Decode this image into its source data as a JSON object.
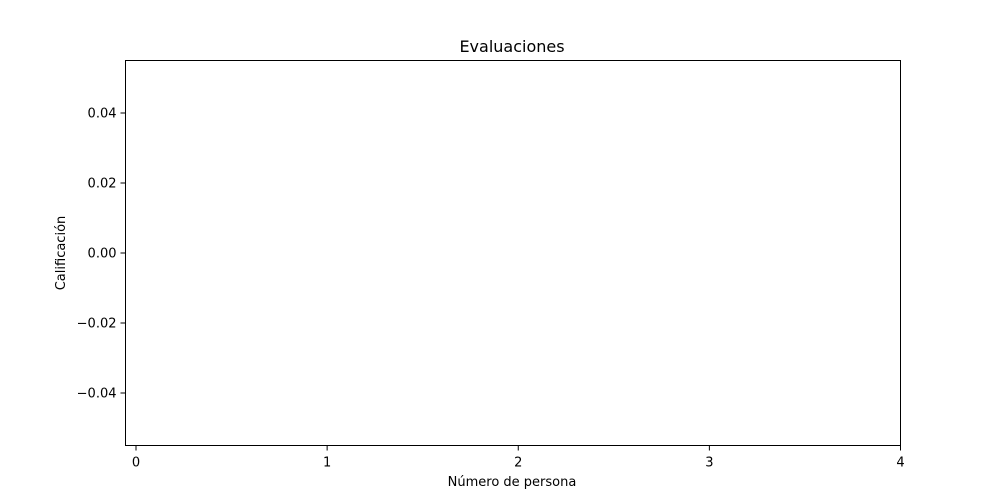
{
  "chart_data": {
    "type": "scatter",
    "title": "Evaluaciones",
    "xlabel": "Número de persona",
    "ylabel": "Calificación",
    "xlim": [
      -0.055,
      4
    ],
    "ylim": [
      -0.055,
      0.055
    ],
    "xticks": [
      0,
      1,
      2,
      3,
      4
    ],
    "xtick_labels": [
      "0",
      "1",
      "2",
      "3",
      "4"
    ],
    "yticks": [
      0.04,
      0.02,
      0.0,
      -0.02,
      -0.04
    ],
    "ytick_labels": [
      "0.04",
      "0.02",
      "0.00",
      "−0.02",
      "−0.04"
    ],
    "series": [
      {
        "x": [],
        "y": []
      }
    ],
    "grid": false,
    "legend": "none"
  }
}
